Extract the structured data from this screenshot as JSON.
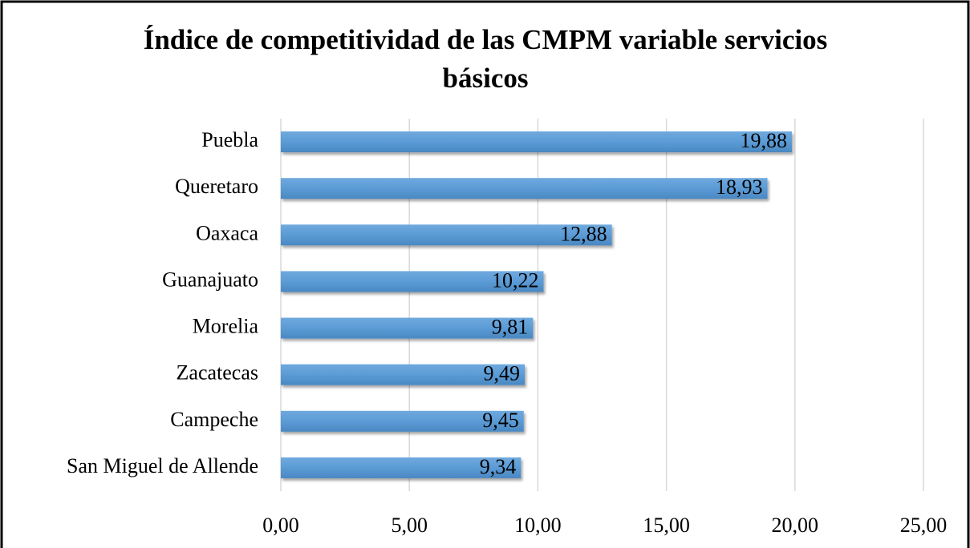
{
  "chart_data": {
    "type": "bar",
    "orientation": "horizontal",
    "title": "Índice de competitividad de las CMPM variable servicios básicos",
    "categories": [
      "Puebla",
      "Queretaro",
      "Oaxaca",
      "Guanajuato",
      "Morelia",
      "Zacatecas",
      "Campeche",
      "San Miguel de Allende"
    ],
    "values": [
      19.88,
      18.93,
      12.88,
      10.22,
      9.81,
      9.49,
      9.45,
      9.34
    ],
    "value_labels": [
      "19,88",
      "18,93",
      "12,88",
      "10,22",
      "9,81",
      "9,49",
      "9,45",
      "9,34"
    ],
    "color": "#5b9bd5",
    "xlim": [
      0,
      25
    ],
    "xticks": [
      {
        "value": 0,
        "label": "0,00"
      },
      {
        "value": 5,
        "label": "5,00"
      },
      {
        "value": 10,
        "label": "10,00"
      },
      {
        "value": 15,
        "label": "15,00"
      },
      {
        "value": 20,
        "label": "20,00"
      },
      {
        "value": 25,
        "label": "25,00"
      }
    ],
    "grid": true
  }
}
